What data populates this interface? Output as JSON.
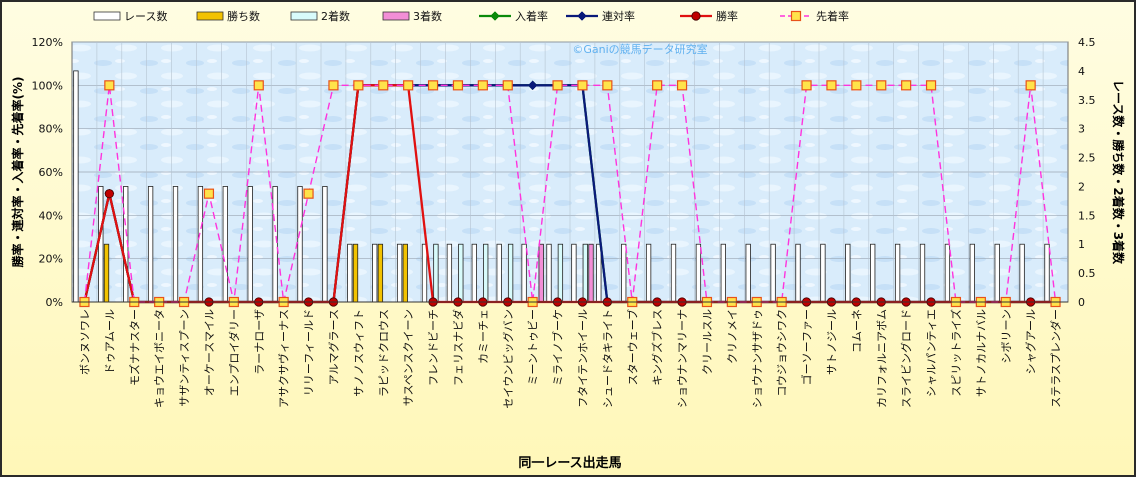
{
  "chart_data": {
    "type": "bar",
    "watermark": "©Ganiの競馬データ研究室",
    "xlabel": "同一レース出走馬",
    "ylabel_left": "勝率・連対率・入着率・先着率(%)",
    "ylabel_right": "レース数・勝ち数・2着数・3着数",
    "left_axis": {
      "min": 0,
      "max": 120,
      "step": 20,
      "suffix": "%"
    },
    "right_axis": {
      "min": 0,
      "max": 4.5,
      "step": 0.5
    },
    "grid": true,
    "legend_position": "top",
    "categories": [
      "ボンヌソワレ",
      "ドゥアムール",
      "モズナナスター",
      "キョウエイボニータ",
      "サザンティスプーン",
      "オーケースマイル",
      "エンプロイダリー",
      "ラーナローザ",
      "アサクサヴィーナス",
      "リリーフィールド",
      "アルマグラース",
      "サノノスウィフト",
      "ラピッドクロウス",
      "サスペンスクイーン",
      "フレンドビーチ",
      "フェリスナビダ",
      "カミーチェ",
      "セイウンビッグバン",
      "ミーントゥビー",
      "ミライノブーケ",
      "フタイテンホイール",
      "シュードタキライト",
      "スターウェーブ",
      "キングズブレス",
      "ショウナンマリーナ",
      "クリールスル",
      "クリノメイ",
      "ショウナンサザドゥ",
      "コウジョウシワク",
      "ゴーソーファー",
      "サトノジール",
      "コムーネ",
      "カリフォルニアボム",
      "スライビングロード",
      "シャルパンティエ",
      "スピリットライズ",
      "サトノカルナバル",
      "シボリーン",
      "シャグアール",
      "ステラスプレンダー"
    ],
    "series": [
      {
        "name": "レース数",
        "kind": "bar",
        "axis": "right",
        "color": "#ffffff",
        "values": [
          4,
          2,
          2,
          2,
          2,
          2,
          2,
          2,
          2,
          2,
          2,
          1,
          1,
          1,
          1,
          1,
          1,
          1,
          1,
          1,
          1,
          1,
          1,
          1,
          1,
          1,
          1,
          1,
          1,
          1,
          1,
          1,
          1,
          1,
          1,
          1,
          1,
          1,
          1,
          1
        ]
      },
      {
        "name": "勝ち数",
        "kind": "bar",
        "axis": "right",
        "color": "#f2c200",
        "values": [
          0,
          1,
          0,
          0,
          0,
          0,
          0,
          0,
          0,
          0,
          0,
          1,
          1,
          1,
          0,
          0,
          0,
          0,
          0,
          0,
          0,
          0,
          0,
          0,
          0,
          0,
          0,
          0,
          0,
          0,
          0,
          0,
          0,
          0,
          0,
          0,
          0,
          0,
          0,
          0
        ]
      },
      {
        "name": "2着数",
        "kind": "bar",
        "axis": "right",
        "color": "#d8fbfb",
        "values": [
          0,
          0,
          0,
          0,
          0,
          0,
          0,
          0,
          0,
          0,
          0,
          0,
          0,
          0,
          1,
          1,
          1,
          1,
          0,
          1,
          1,
          0,
          0,
          0,
          0,
          0,
          0,
          0,
          0,
          0,
          0,
          0,
          0,
          0,
          0,
          0,
          0,
          0,
          0,
          0
        ]
      },
      {
        "name": "3着数",
        "kind": "bar",
        "axis": "right",
        "color": "#f28ed6",
        "values": [
          0,
          0,
          0,
          0,
          0,
          0,
          0,
          0,
          0,
          0,
          0,
          0,
          0,
          0,
          0,
          0,
          0,
          0,
          1,
          0,
          1,
          0,
          0,
          0,
          0,
          0,
          0,
          0,
          0,
          0,
          0,
          0,
          0,
          0,
          0,
          0,
          0,
          0,
          0,
          0
        ]
      },
      {
        "name": "入着率",
        "kind": "line",
        "axis": "left",
        "color": "#0a8a0a",
        "marker": "diamond",
        "values": [
          0,
          50,
          0,
          0,
          0,
          0,
          0,
          0,
          0,
          0,
          0,
          100,
          100,
          100,
          100,
          100,
          100,
          100,
          100,
          100,
          100,
          0,
          0,
          0,
          0,
          0,
          0,
          0,
          0,
          0,
          0,
          0,
          0,
          0,
          0,
          0,
          0,
          0,
          0,
          0
        ]
      },
      {
        "name": "連対率",
        "kind": "line",
        "axis": "left",
        "color": "#0a1a7a",
        "marker": "diamond",
        "values": [
          0,
          50,
          0,
          0,
          0,
          0,
          0,
          0,
          0,
          0,
          0,
          100,
          100,
          100,
          100,
          100,
          100,
          100,
          100,
          100,
          100,
          0,
          0,
          0,
          0,
          0,
          0,
          0,
          0,
          0,
          0,
          0,
          0,
          0,
          0,
          0,
          0,
          0,
          0,
          0
        ]
      },
      {
        "name": "勝率",
        "kind": "line",
        "axis": "left",
        "color": "#e01010",
        "marker": "circle",
        "values": [
          0,
          50,
          0,
          0,
          0,
          0,
          0,
          0,
          0,
          0,
          0,
          100,
          100,
          100,
          0,
          0,
          0,
          0,
          0,
          0,
          0,
          0,
          0,
          0,
          0,
          0,
          0,
          0,
          0,
          0,
          0,
          0,
          0,
          0,
          0,
          0,
          0,
          0,
          0,
          0
        ]
      },
      {
        "name": "先着率",
        "kind": "line",
        "axis": "left",
        "color": "#ff33dd",
        "marker": "square",
        "dashed": true,
        "values": [
          0,
          100,
          0,
          0,
          0,
          50,
          0,
          100,
          0,
          50,
          100,
          100,
          100,
          100,
          100,
          100,
          100,
          100,
          0,
          100,
          100,
          100,
          0,
          100,
          100,
          0,
          0,
          0,
          0,
          100,
          100,
          100,
          100,
          100,
          100,
          0,
          0,
          0,
          100,
          0
        ]
      }
    ]
  }
}
